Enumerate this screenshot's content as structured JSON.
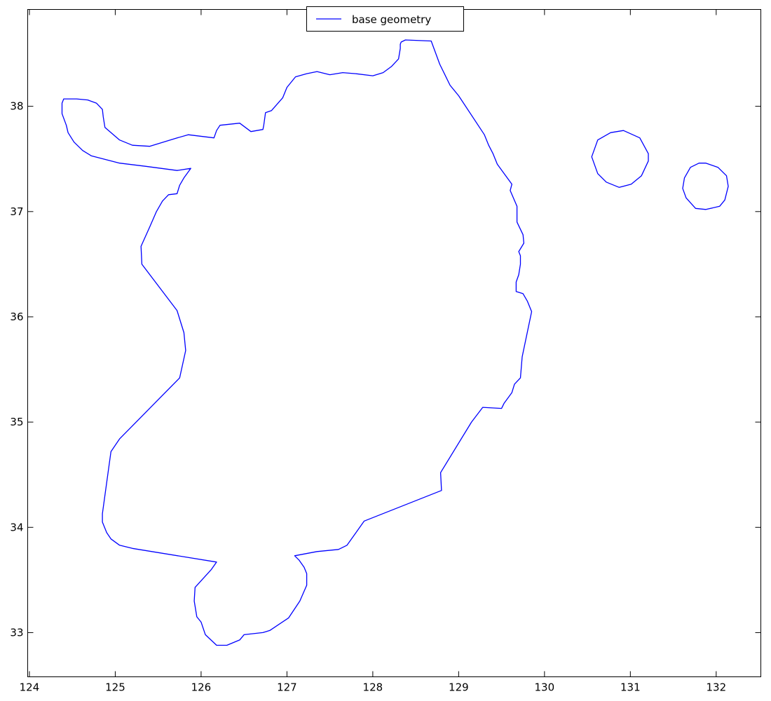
{
  "chart_data": {
    "type": "line",
    "title": "",
    "xlabel": "",
    "ylabel": "",
    "xlim": [
      123.98,
      132.52
    ],
    "ylim": [
      32.58,
      38.92
    ],
    "xticks": [
      124,
      125,
      126,
      127,
      128,
      129,
      130,
      131,
      132
    ],
    "yticks": [
      33,
      34,
      35,
      36,
      37,
      38
    ],
    "grid": false,
    "legend": {
      "position": "top-center",
      "entries": [
        "base geometry"
      ]
    },
    "colors": {
      "series": "#0000ff",
      "axis": "#000000",
      "background": "#ffffff"
    },
    "series": [
      {
        "name": "base geometry",
        "color": "#0000ff",
        "polygons": [
          [
            [
              128.68,
              38.62
            ],
            [
              128.38,
              38.63
            ],
            [
              128.33,
              38.61
            ],
            [
              128.32,
              38.59
            ],
            [
              128.32,
              38.55
            ],
            [
              128.3,
              38.45
            ],
            [
              128.22,
              38.38
            ],
            [
              128.12,
              38.32
            ],
            [
              128.0,
              38.29
            ],
            [
              127.8,
              38.31
            ],
            [
              127.65,
              38.32
            ],
            [
              127.5,
              38.3
            ],
            [
              127.35,
              38.33
            ],
            [
              127.23,
              38.31
            ],
            [
              127.1,
              38.28
            ],
            [
              127.0,
              38.18
            ],
            [
              126.95,
              38.08
            ],
            [
              126.82,
              37.96
            ],
            [
              126.75,
              37.94
            ],
            [
              126.73,
              37.82
            ],
            [
              126.72,
              37.78
            ],
            [
              126.58,
              37.76
            ],
            [
              126.45,
              37.84
            ],
            [
              126.22,
              37.82
            ],
            [
              126.18,
              37.77
            ],
            [
              126.15,
              37.7
            ],
            [
              125.85,
              37.73
            ],
            [
              125.68,
              37.69
            ],
            [
              125.4,
              37.62
            ],
            [
              125.2,
              37.63
            ],
            [
              125.05,
              37.68
            ],
            [
              124.88,
              37.8
            ],
            [
              124.86,
              37.9
            ],
            [
              124.85,
              37.97
            ],
            [
              124.78,
              38.03
            ],
            [
              124.68,
              38.06
            ],
            [
              124.55,
              38.07
            ],
            [
              124.4,
              38.07
            ],
            [
              124.38,
              38.03
            ],
            [
              124.38,
              37.93
            ],
            [
              124.43,
              37.82
            ],
            [
              124.45,
              37.75
            ],
            [
              124.52,
              37.66
            ],
            [
              124.62,
              37.58
            ],
            [
              124.72,
              37.53
            ],
            [
              125.05,
              37.46
            ],
            [
              125.35,
              37.43
            ],
            [
              125.72,
              37.39
            ],
            [
              125.88,
              37.41
            ],
            [
              125.8,
              37.32
            ],
            [
              125.75,
              37.25
            ],
            [
              125.72,
              37.17
            ],
            [
              125.62,
              37.16
            ],
            [
              125.55,
              37.1
            ],
            [
              125.48,
              37.0
            ],
            [
              125.4,
              36.85
            ],
            [
              125.3,
              36.67
            ],
            [
              125.31,
              36.5
            ],
            [
              125.72,
              36.06
            ],
            [
              125.8,
              35.85
            ],
            [
              125.82,
              35.68
            ],
            [
              125.75,
              35.42
            ],
            [
              125.05,
              34.84
            ],
            [
              124.95,
              34.72
            ],
            [
              124.85,
              34.13
            ],
            [
              124.85,
              34.05
            ],
            [
              124.9,
              33.95
            ],
            [
              124.95,
              33.89
            ],
            [
              125.05,
              33.83
            ],
            [
              125.2,
              33.8
            ],
            [
              126.18,
              33.67
            ],
            [
              126.12,
              33.6
            ],
            [
              125.93,
              33.43
            ],
            [
              125.92,
              33.3
            ],
            [
              125.95,
              33.15
            ],
            [
              126.0,
              33.1
            ],
            [
              126.05,
              32.98
            ],
            [
              126.18,
              32.88
            ],
            [
              126.3,
              32.88
            ],
            [
              126.45,
              32.93
            ],
            [
              126.5,
              32.98
            ],
            [
              126.72,
              33.0
            ],
            [
              126.8,
              33.02
            ],
            [
              127.02,
              33.14
            ],
            [
              127.15,
              33.3
            ],
            [
              127.23,
              33.45
            ],
            [
              127.23,
              33.56
            ],
            [
              127.2,
              33.62
            ],
            [
              127.14,
              33.69
            ],
            [
              127.09,
              33.73
            ],
            [
              127.35,
              33.77
            ],
            [
              127.6,
              33.79
            ],
            [
              127.7,
              33.83
            ],
            [
              127.9,
              34.06
            ],
            [
              128.8,
              34.35
            ],
            [
              128.79,
              34.52
            ],
            [
              129.15,
              35.0
            ],
            [
              129.28,
              35.14
            ],
            [
              129.5,
              35.13
            ],
            [
              129.53,
              35.18
            ],
            [
              129.62,
              35.28
            ],
            [
              129.65,
              35.36
            ],
            [
              129.72,
              35.42
            ],
            [
              129.74,
              35.62
            ],
            [
              129.85,
              36.05
            ],
            [
              129.8,
              36.15
            ],
            [
              129.75,
              36.22
            ],
            [
              129.67,
              36.24
            ],
            [
              129.67,
              36.33
            ],
            [
              129.7,
              36.4
            ],
            [
              129.72,
              36.5
            ],
            [
              129.72,
              36.58
            ],
            [
              129.7,
              36.62
            ],
            [
              129.76,
              36.7
            ],
            [
              129.75,
              36.78
            ],
            [
              129.68,
              36.9
            ],
            [
              129.68,
              37.05
            ],
            [
              129.6,
              37.2
            ],
            [
              129.62,
              37.26
            ],
            [
              129.45,
              37.45
            ],
            [
              129.4,
              37.55
            ],
            [
              129.35,
              37.63
            ],
            [
              129.3,
              37.73
            ],
            [
              129.0,
              38.1
            ],
            [
              128.9,
              38.2
            ],
            [
              128.78,
              38.4
            ]
          ],
          [
            [
              130.92,
              37.77
            ],
            [
              131.11,
              37.7
            ],
            [
              131.21,
              37.55
            ],
            [
              131.21,
              37.48
            ],
            [
              131.13,
              37.34
            ],
            [
              131.01,
              37.26
            ],
            [
              130.87,
              37.23
            ],
            [
              130.72,
              37.28
            ],
            [
              130.62,
              37.36
            ],
            [
              130.55,
              37.52
            ],
            [
              130.62,
              37.68
            ],
            [
              130.77,
              37.75
            ]
          ],
          [
            [
              131.88,
              37.46
            ],
            [
              132.02,
              37.42
            ],
            [
              132.12,
              37.34
            ],
            [
              132.14,
              37.24
            ],
            [
              132.1,
              37.11
            ],
            [
              132.04,
              37.05
            ],
            [
              131.88,
              37.02
            ],
            [
              131.76,
              37.03
            ],
            [
              131.65,
              37.13
            ],
            [
              131.61,
              37.22
            ],
            [
              131.63,
              37.32
            ],
            [
              131.7,
              37.42
            ],
            [
              131.8,
              37.46
            ]
          ]
        ]
      }
    ]
  }
}
